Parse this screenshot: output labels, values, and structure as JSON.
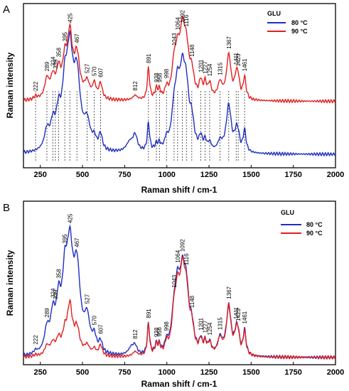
{
  "figure": {
    "panels": [
      {
        "letter": "A",
        "legend_title": "GLU",
        "series_names": [
          "80 °C",
          "90 °C"
        ],
        "xlabel": "Raman shift / cm-1",
        "ylabel": "Raman intensity"
      },
      {
        "letter": "B",
        "legend_title": "GLU",
        "series_names": [
          "80 °C",
          "90 °C"
        ],
        "xlabel": "Raman shift / cm-1",
        "ylabel": "Raman intensity"
      }
    ],
    "colors": {
      "s80": "#1f2fbf",
      "s90": "#e02020"
    }
  },
  "chart_data": [
    {
      "type": "line",
      "panel": "A",
      "legend_title": "GLU",
      "xlabel": "Raman shift / cm-1",
      "ylabel": "Raman intensity",
      "xlim": [
        150,
        2000
      ],
      "x_ticks": [
        250,
        500,
        750,
        1000,
        1250,
        1500,
        1750,
        2000
      ],
      "y_ticks_shown": false,
      "legend_position": "top-right",
      "peak_labels": [
        222,
        289,
        324,
        339,
        358,
        395,
        425,
        467,
        527,
        570,
        607,
        812,
        891,
        938,
        956,
        998,
        1043,
        1064,
        1092,
        1116,
        1148,
        1201,
        1227,
        1254,
        1315,
        1367,
        1411,
        1423,
        1461
      ],
      "marked_positions": [
        222,
        289,
        324,
        339,
        358,
        395,
        425,
        467,
        527,
        570,
        607,
        891,
        938,
        956,
        998,
        1043,
        1064,
        1092,
        1116,
        1148,
        1201,
        1227,
        1254,
        1315,
        1367,
        1411,
        1423,
        1461
      ],
      "series": [
        {
          "name": "80 °C",
          "color": "#1f2fbf",
          "baseline": 0.04,
          "peaks": [
            [
              289,
              0.12,
              18
            ],
            [
              324,
              0.14,
              16
            ],
            [
              358,
              0.2,
              18
            ],
            [
              395,
              0.32,
              18
            ],
            [
              425,
              0.56,
              22
            ],
            [
              467,
              0.44,
              24
            ],
            [
              527,
              0.16,
              22
            ],
            [
              570,
              0.06,
              14
            ],
            [
              607,
              0.1,
              12
            ],
            [
              780,
              0.06,
              25
            ],
            [
              812,
              0.1,
              16
            ],
            [
              891,
              0.18,
              8
            ],
            [
              938,
              0.04,
              10
            ],
            [
              956,
              0.04,
              8
            ],
            [
              998,
              0.06,
              12
            ],
            [
              1043,
              0.22,
              18
            ],
            [
              1064,
              0.28,
              16
            ],
            [
              1092,
              0.42,
              20
            ],
            [
              1116,
              0.3,
              18
            ],
            [
              1148,
              0.16,
              16
            ],
            [
              1201,
              0.08,
              10
            ],
            [
              1227,
              0.06,
              10
            ],
            [
              1254,
              0.05,
              12
            ],
            [
              1315,
              0.06,
              16
            ],
            [
              1367,
              0.3,
              18
            ],
            [
              1411,
              0.1,
              12
            ],
            [
              1423,
              0.08,
              10
            ],
            [
              1461,
              0.14,
              10
            ]
          ]
        },
        {
          "name": "90 °C",
          "color": "#e02020",
          "baseline": 0.38,
          "peaks": [
            [
              222,
              0.02,
              12
            ],
            [
              289,
              0.12,
              16
            ],
            [
              324,
              0.12,
              16
            ],
            [
              358,
              0.16,
              16
            ],
            [
              395,
              0.2,
              16
            ],
            [
              425,
              0.38,
              18
            ],
            [
              467,
              0.26,
              20
            ],
            [
              527,
              0.1,
              18
            ],
            [
              570,
              0.09,
              12
            ],
            [
              607,
              0.1,
              12
            ],
            [
              812,
              0.03,
              16
            ],
            [
              891,
              0.2,
              8
            ],
            [
              938,
              0.06,
              10
            ],
            [
              956,
              0.05,
              8
            ],
            [
              998,
              0.06,
              10
            ],
            [
              1043,
              0.18,
              16
            ],
            [
              1064,
              0.22,
              16
            ],
            [
              1092,
              0.36,
              18
            ],
            [
              1116,
              0.26,
              18
            ],
            [
              1148,
              0.14,
              16
            ],
            [
              1201,
              0.1,
              10
            ],
            [
              1227,
              0.09,
              10
            ],
            [
              1254,
              0.09,
              12
            ],
            [
              1315,
              0.1,
              16
            ],
            [
              1367,
              0.28,
              16
            ],
            [
              1411,
              0.12,
              12
            ],
            [
              1423,
              0.1,
              10
            ],
            [
              1461,
              0.14,
              10
            ]
          ]
        }
      ]
    },
    {
      "type": "line",
      "panel": "B",
      "legend_title": "GLU",
      "xlabel": "Raman shift / cm-1",
      "ylabel": "Raman intensity",
      "xlim": [
        150,
        2000
      ],
      "x_ticks": [
        250,
        500,
        750,
        1000,
        1250,
        1500,
        1750,
        2000
      ],
      "y_ticks_shown": false,
      "legend_position": "top-right",
      "peak_labels": [
        222,
        289,
        324,
        339,
        358,
        395,
        425,
        467,
        527,
        570,
        607,
        812,
        891,
        938,
        956,
        998,
        1043,
        1064,
        1092,
        1116,
        1148,
        1201,
        1227,
        1254,
        1315,
        1367,
        1411,
        1423,
        1461
      ],
      "series": [
        {
          "name": "80 °C",
          "color": "#1f2fbf",
          "baseline": 0.0,
          "peaks": [
            [
              222,
              0.02,
              12
            ],
            [
              289,
              0.14,
              18
            ],
            [
              324,
              0.2,
              16
            ],
            [
              358,
              0.28,
              18
            ],
            [
              395,
              0.38,
              18
            ],
            [
              425,
              0.58,
              22
            ],
            [
              467,
              0.5,
              24
            ],
            [
              527,
              0.2,
              20
            ],
            [
              570,
              0.09,
              14
            ],
            [
              607,
              0.07,
              12
            ],
            [
              790,
              0.05,
              22
            ],
            [
              812,
              0.05,
              14
            ],
            [
              891,
              0.2,
              8
            ],
            [
              938,
              0.06,
              10
            ],
            [
              956,
              0.05,
              8
            ],
            [
              998,
              0.06,
              12
            ],
            [
              1043,
              0.22,
              18
            ],
            [
              1064,
              0.3,
              16
            ],
            [
              1092,
              0.42,
              20
            ],
            [
              1116,
              0.32,
              18
            ],
            [
              1148,
              0.14,
              16
            ],
            [
              1201,
              0.08,
              10
            ],
            [
              1227,
              0.07,
              10
            ],
            [
              1254,
              0.07,
              12
            ],
            [
              1315,
              0.1,
              16
            ],
            [
              1367,
              0.3,
              18
            ],
            [
              1411,
              0.12,
              12
            ],
            [
              1423,
              0.1,
              10
            ],
            [
              1461,
              0.16,
              10
            ]
          ]
        },
        {
          "name": "90 °C",
          "color": "#e02020",
          "baseline": 0.0,
          "peaks": [
            [
              222,
              0.01,
              12
            ],
            [
              289,
              0.06,
              16
            ],
            [
              324,
              0.07,
              16
            ],
            [
              358,
              0.09,
              16
            ],
            [
              395,
              0.12,
              16
            ],
            [
              425,
              0.3,
              18
            ],
            [
              467,
              0.16,
              20
            ],
            [
              527,
              0.06,
              18
            ],
            [
              570,
              0.04,
              12
            ],
            [
              607,
              0.07,
              12
            ],
            [
              812,
              0.03,
              16
            ],
            [
              891,
              0.2,
              8
            ],
            [
              938,
              0.06,
              10
            ],
            [
              956,
              0.05,
              8
            ],
            [
              998,
              0.06,
              10
            ],
            [
              1043,
              0.22,
              16
            ],
            [
              1064,
              0.3,
              16
            ],
            [
              1092,
              0.42,
              18
            ],
            [
              1116,
              0.32,
              18
            ],
            [
              1148,
              0.14,
              16
            ],
            [
              1201,
              0.08,
              10
            ],
            [
              1227,
              0.07,
              10
            ],
            [
              1254,
              0.07,
              12
            ],
            [
              1315,
              0.1,
              16
            ],
            [
              1367,
              0.32,
              16
            ],
            [
              1411,
              0.12,
              12
            ],
            [
              1423,
              0.1,
              10
            ],
            [
              1461,
              0.15,
              10
            ]
          ]
        }
      ]
    }
  ]
}
